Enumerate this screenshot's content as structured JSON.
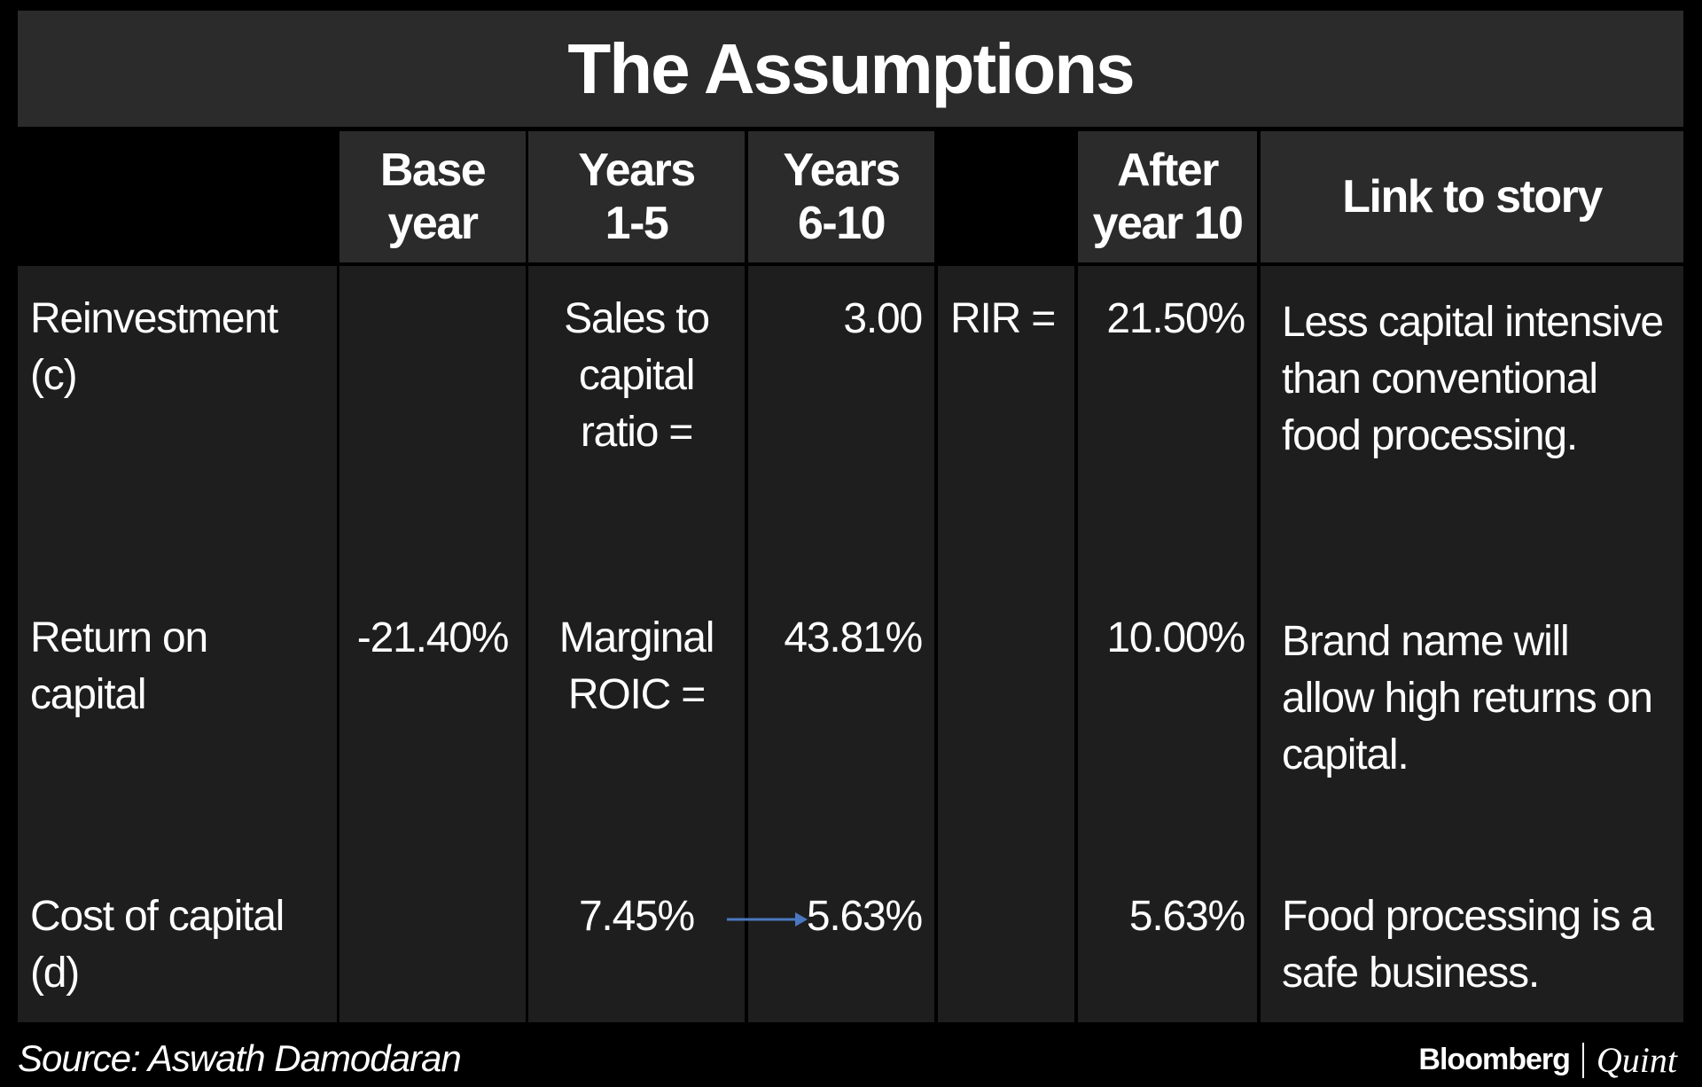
{
  "title": "The Assumptions",
  "header": {
    "base_year": "Base year",
    "years_1_5": "Years 1-5",
    "years_6_10": "Years 6-10",
    "after_year_10": "After year 10",
    "link": "Link to story"
  },
  "rows": [
    {
      "label": "Reinvestment (c)",
      "years_1_5": "Sales to capital ratio =",
      "years_6_10": "3.00",
      "note": "RIR =",
      "after_year_10": "21.50%",
      "link": "Less capital intensive than conventional food processing."
    },
    {
      "label": "Return on capital",
      "base_year": "-21.40%",
      "years_1_5": "Marginal ROIC =",
      "years_6_10": "43.81%",
      "after_year_10": "10.00%",
      "link": "Brand name will allow high returns on capital."
    },
    {
      "label": "Cost of capital (d)",
      "years_1_5": "7.45%",
      "years_6_10": "5.63%",
      "after_year_10": "5.63%",
      "link": "Food processing is a safe business."
    }
  ],
  "footer": {
    "source": "Source: Aswath Damodaran",
    "brand": "Bloomberg",
    "partner": "Quint"
  }
}
